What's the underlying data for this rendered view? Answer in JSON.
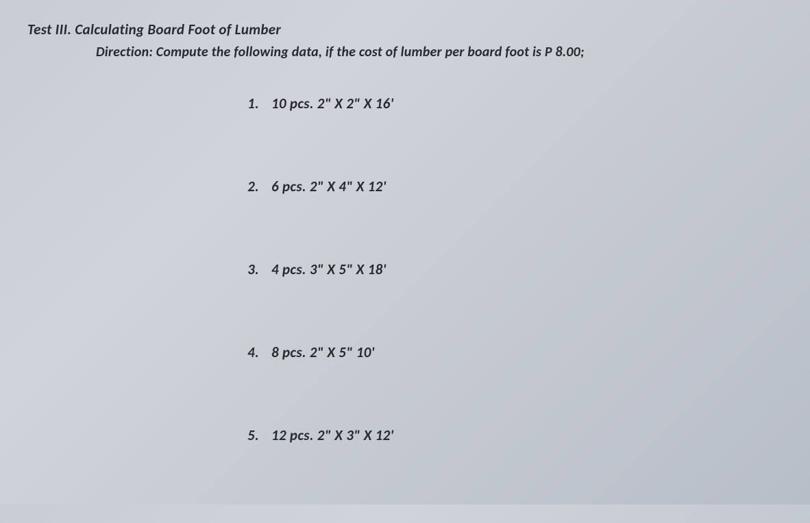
{
  "document": {
    "test_title": "Test III. Calculating Board Foot of Lumber",
    "direction": "Direction: Compute the following data, if the cost of lumber per board foot is P 8.00;",
    "items": [
      {
        "num": "1.",
        "text": "10 pcs. 2\" X 2\" X 16'"
      },
      {
        "num": "2.",
        "text": "6 pcs. 2\" X 4\" X 12'"
      },
      {
        "num": "3.",
        "text": "4 pcs. 3\" X  5\" X 18'"
      },
      {
        "num": "4.",
        "text": "8 pcs. 2\" X 5\" 10'"
      },
      {
        "num": "5.",
        "text": "12 pcs. 2\" X  3\" X 12'"
      }
    ]
  },
  "style": {
    "background_color": "#c8cdd4",
    "text_color": "#2a2a2e",
    "title_fontsize": 21,
    "direction_fontsize": 20,
    "item_fontsize": 21,
    "font_style": "bold italic",
    "item_spacing": 95,
    "direction_indent": 100,
    "items_indent": 300
  }
}
